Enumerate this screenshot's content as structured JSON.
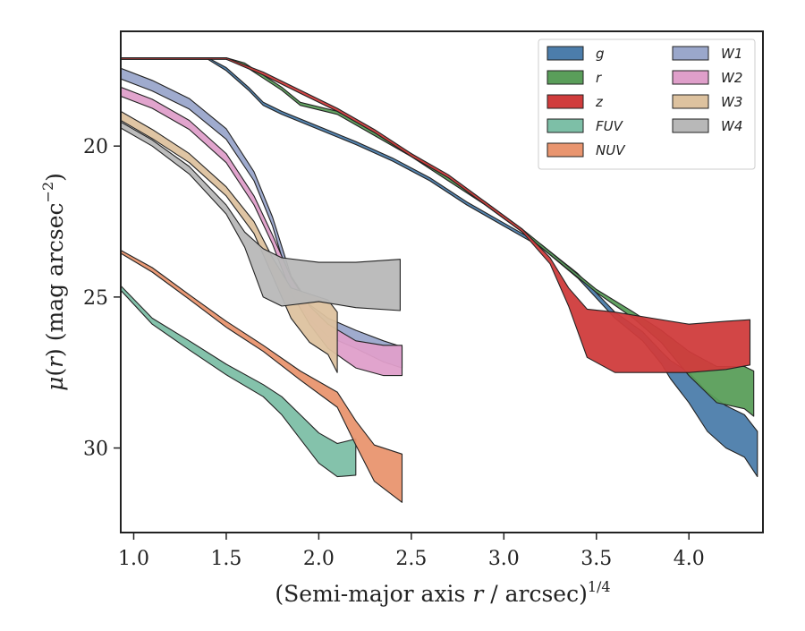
{
  "chart_data": {
    "type": "area",
    "xlabel": "(Semi-major axis r / arcsec)^1/4",
    "xlabel_parts": {
      "lead": "(Semi-major axis ",
      "var": "r",
      "mid": " / arcsec)",
      "sup": "1/4"
    },
    "ylabel": "μ(r) (mag arcsec⁻²)",
    "ylabel_parts": {
      "mu": "μ",
      "open": "(",
      "var": "r",
      "close": ")",
      "unit": " (mag arcsec",
      "sup": "−2",
      "end": ")"
    },
    "xlim": [
      0.93,
      4.4
    ],
    "ylim": [
      32.8,
      16.2
    ],
    "y_inverted": true,
    "xticks": [
      "1.0",
      "1.5",
      "2.0",
      "2.5",
      "3.0",
      "3.5",
      "4.0"
    ],
    "yticks": [
      "20",
      "25",
      "30"
    ],
    "legend_position": "top-right",
    "legend_columns": 2,
    "series": [
      {
        "name": "g",
        "color": "#4c7dab",
        "pts": [
          [
            0.93,
            17.1
          ],
          [
            1.4,
            17.1
          ],
          [
            1.5,
            17.45
          ],
          [
            1.62,
            18.1
          ],
          [
            1.7,
            18.6
          ],
          [
            1.8,
            18.9
          ],
          [
            2.0,
            19.4
          ],
          [
            2.2,
            19.9
          ],
          [
            2.4,
            20.45
          ],
          [
            2.6,
            21.1
          ],
          [
            2.8,
            21.9
          ],
          [
            3.0,
            22.6
          ],
          [
            3.2,
            23.3
          ],
          [
            3.4,
            24.3
          ],
          [
            3.6,
            25.6
          ],
          [
            3.75,
            26.3
          ],
          [
            3.85,
            27.0
          ],
          [
            3.9,
            27.4
          ],
          [
            4.0,
            28.0
          ],
          [
            4.1,
            28.8
          ],
          [
            4.2,
            29.3
          ],
          [
            4.3,
            29.6
          ],
          [
            4.37,
            30.2
          ]
        ],
        "width": [
          0.05,
          0.05,
          0.1,
          0.1,
          0.1,
          0.1,
          0.1,
          0.1,
          0.1,
          0.1,
          0.1,
          0.1,
          0.1,
          0.15,
          0.2,
          0.3,
          0.4,
          0.6,
          1.0,
          1.3,
          1.4,
          1.4,
          1.5
        ]
      },
      {
        "name": "r",
        "color": "#5a9e5a",
        "pts": [
          [
            0.93,
            17.1
          ],
          [
            1.5,
            17.1
          ],
          [
            1.6,
            17.3
          ],
          [
            1.8,
            18.1
          ],
          [
            1.9,
            18.6
          ],
          [
            2.1,
            18.9
          ],
          [
            2.3,
            19.6
          ],
          [
            2.5,
            20.3
          ],
          [
            2.7,
            21.1
          ],
          [
            2.9,
            21.9
          ],
          [
            3.1,
            22.8
          ],
          [
            3.3,
            23.8
          ],
          [
            3.5,
            24.8
          ],
          [
            3.7,
            25.6
          ],
          [
            3.85,
            26.3
          ],
          [
            4.0,
            27.2
          ],
          [
            4.15,
            27.9
          ],
          [
            4.3,
            28.0
          ],
          [
            4.35,
            28.2
          ]
        ],
        "width": [
          0.05,
          0.05,
          0.1,
          0.1,
          0.1,
          0.1,
          0.1,
          0.1,
          0.1,
          0.1,
          0.1,
          0.1,
          0.1,
          0.2,
          0.4,
          0.8,
          1.2,
          1.4,
          1.5
        ]
      },
      {
        "name": "z",
        "color": "#d03c3c",
        "pts": [
          [
            0.93,
            17.1
          ],
          [
            1.5,
            17.1
          ],
          [
            1.7,
            17.6
          ],
          [
            1.9,
            18.2
          ],
          [
            2.1,
            18.8
          ],
          [
            2.3,
            19.5
          ],
          [
            2.5,
            20.3
          ],
          [
            2.7,
            21.0
          ],
          [
            2.9,
            21.9
          ],
          [
            3.1,
            22.8
          ],
          [
            3.25,
            23.8
          ],
          [
            3.35,
            25.0
          ],
          [
            3.45,
            26.2
          ],
          [
            3.6,
            26.5
          ],
          [
            3.8,
            26.6
          ],
          [
            4.0,
            26.7
          ],
          [
            4.2,
            26.6
          ],
          [
            4.33,
            26.5
          ]
        ],
        "width": [
          0.05,
          0.05,
          0.1,
          0.1,
          0.1,
          0.1,
          0.1,
          0.1,
          0.1,
          0.1,
          0.2,
          0.6,
          1.6,
          2.0,
          1.8,
          1.6,
          1.6,
          1.5
        ]
      },
      {
        "name": "FUV",
        "color": "#7dbfa7",
        "pts": [
          [
            0.93,
            24.7
          ],
          [
            1.1,
            25.8
          ],
          [
            1.3,
            26.6
          ],
          [
            1.5,
            27.4
          ],
          [
            1.7,
            28.1
          ],
          [
            1.8,
            28.6
          ],
          [
            1.9,
            29.3
          ],
          [
            2.0,
            30.0
          ],
          [
            2.1,
            30.4
          ],
          [
            2.2,
            30.3
          ]
        ],
        "width": [
          0.15,
          0.2,
          0.3,
          0.35,
          0.4,
          0.6,
          0.8,
          1.0,
          1.1,
          1.2
        ]
      },
      {
        "name": "NUV",
        "color": "#e9956f",
        "pts": [
          [
            0.93,
            23.5
          ],
          [
            1.1,
            24.1
          ],
          [
            1.3,
            25.0
          ],
          [
            1.5,
            25.9
          ],
          [
            1.7,
            26.7
          ],
          [
            1.9,
            27.6
          ],
          [
            2.1,
            28.4
          ],
          [
            2.2,
            29.5
          ],
          [
            2.3,
            30.5
          ],
          [
            2.45,
            31.0
          ]
        ],
        "width": [
          0.1,
          0.15,
          0.15,
          0.2,
          0.2,
          0.3,
          0.5,
          0.8,
          1.2,
          1.6
        ]
      },
      {
        "name": "W1",
        "color": "#9aa7cb",
        "pts": [
          [
            0.93,
            17.6
          ],
          [
            1.1,
            18.0
          ],
          [
            1.3,
            18.6
          ],
          [
            1.5,
            19.6
          ],
          [
            1.65,
            21.0
          ],
          [
            1.75,
            22.5
          ],
          [
            1.85,
            24.5
          ],
          [
            1.95,
            25.5
          ],
          [
            2.05,
            26.0
          ],
          [
            2.2,
            26.4
          ],
          [
            2.35,
            26.8
          ],
          [
            2.45,
            27.0
          ]
        ],
        "width": [
          0.35,
          0.35,
          0.35,
          0.35,
          0.3,
          0.3,
          0.4,
          0.5,
          0.6,
          0.6,
          0.7,
          0.7
        ]
      },
      {
        "name": "W2",
        "color": "#df9fca",
        "pts": [
          [
            0.93,
            18.2
          ],
          [
            1.1,
            18.6
          ],
          [
            1.3,
            19.3
          ],
          [
            1.5,
            20.4
          ],
          [
            1.65,
            21.8
          ],
          [
            1.75,
            23.1
          ],
          [
            1.85,
            24.6
          ],
          [
            1.95,
            25.6
          ],
          [
            2.05,
            26.3
          ],
          [
            2.2,
            26.9
          ],
          [
            2.35,
            27.1
          ],
          [
            2.45,
            27.1
          ]
        ],
        "width": [
          0.3,
          0.3,
          0.3,
          0.3,
          0.3,
          0.3,
          0.5,
          0.6,
          0.8,
          0.9,
          1.0,
          1.0
        ]
      },
      {
        "name": "W3",
        "color": "#ddc29f",
        "pts": [
          [
            0.93,
            19.0
          ],
          [
            1.1,
            19.6
          ],
          [
            1.3,
            20.4
          ],
          [
            1.5,
            21.5
          ],
          [
            1.65,
            22.7
          ],
          [
            1.75,
            24.0
          ],
          [
            1.85,
            25.2
          ],
          [
            1.95,
            25.7
          ],
          [
            2.05,
            26.0
          ],
          [
            2.1,
            26.5
          ]
        ],
        "width": [
          0.3,
          0.3,
          0.3,
          0.3,
          0.4,
          0.6,
          1.0,
          1.6,
          1.8,
          2.0
        ]
      },
      {
        "name": "W4",
        "color": "#b8b8b8",
        "pts": [
          [
            0.93,
            19.3
          ],
          [
            1.1,
            19.9
          ],
          [
            1.3,
            20.8
          ],
          [
            1.5,
            22.1
          ],
          [
            1.6,
            23.1
          ],
          [
            1.7,
            24.2
          ],
          [
            1.8,
            24.5
          ],
          [
            2.0,
            24.5
          ],
          [
            2.2,
            24.6
          ],
          [
            2.44,
            24.6
          ]
        ],
        "width": [
          0.2,
          0.2,
          0.25,
          0.3,
          0.5,
          1.6,
          1.6,
          1.3,
          1.5,
          1.7
        ]
      }
    ]
  }
}
